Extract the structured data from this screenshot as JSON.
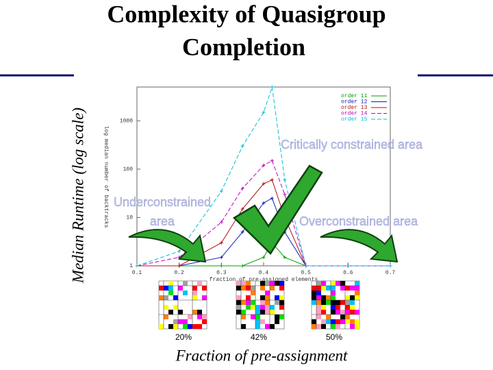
{
  "chart_data": {
    "type": "line",
    "title": [
      "Complexity of Quasigroup",
      "Completion"
    ],
    "ylabel": "Median Runtime (log scale)",
    "xlabel": "Fraction of pre-assignment",
    "inner_ylabel": "log median number of backtracks",
    "inner_xlabel": "fraction of pre-assigned elements",
    "log_y": true,
    "x": [
      0.1,
      0.2,
      0.3,
      0.35,
      0.4,
      0.42,
      0.45,
      0.5,
      0.6,
      0.7
    ],
    "xlim": [
      0.1,
      0.7
    ],
    "xticks": [
      0.1,
      0.2,
      0.3,
      0.4,
      0.5,
      0.6,
      0.7
    ],
    "ylim": [
      1,
      5000
    ],
    "yticks": [
      1,
      10,
      100,
      1000
    ],
    "series": [
      {
        "name": "order 11",
        "color": "#00a000",
        "values": [
          1,
          1,
          1,
          1,
          1.5,
          3,
          1.5,
          1,
          1,
          1
        ]
      },
      {
        "name": "order 12",
        "color": "#1020b0",
        "values": [
          1,
          1,
          1.5,
          5,
          20,
          25,
          5,
          1,
          1,
          1
        ]
      },
      {
        "name": "order 13",
        "color": "#b01010",
        "values": [
          1,
          1,
          3,
          15,
          50,
          60,
          10,
          1,
          1,
          1
        ]
      },
      {
        "name": "order 14",
        "color": "#c000c0",
        "values": [
          1,
          1.5,
          8,
          40,
          120,
          150,
          30,
          1,
          1,
          1
        ]
      },
      {
        "name": "order 15",
        "color": "#00c0d0",
        "values": [
          1,
          2,
          35,
          300,
          1500,
          5000,
          60,
          1,
          1,
          1
        ]
      }
    ],
    "annotations": {
      "critical": "Critically constrained area",
      "under": [
        "Underconstrained",
        "area"
      ],
      "over": "Overconstrained area"
    },
    "examples": [
      "20%",
      "42%",
      "50%"
    ]
  }
}
